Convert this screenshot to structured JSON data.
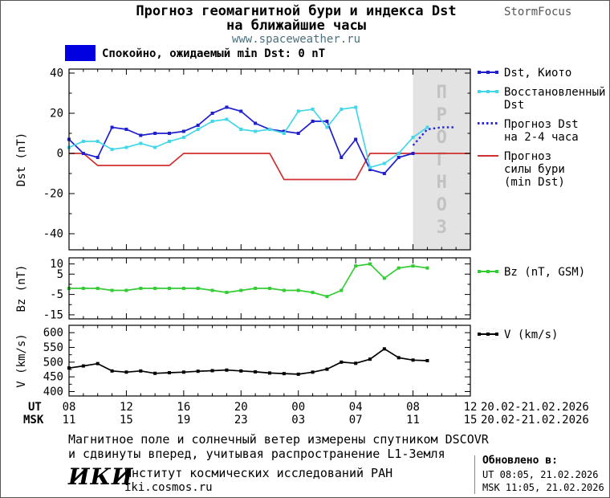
{
  "header": {
    "title_line1": "Прогноз геомагнитной бури и индекса Dst",
    "title_line2": "на ближайшие часы",
    "site_link": "www.spaceweather.ru",
    "brand": "StormFocus"
  },
  "banner": {
    "text": "Спокойно, ожидаемый min Dst: 0 nT"
  },
  "colors": {
    "kyoto": "#1f1fd0",
    "restored": "#44d7e8",
    "forecast": "#2828e0",
    "storm": "#d03030",
    "bz": "#33cc33",
    "v": "#000000",
    "quiet_banner": "#0000e0",
    "forecast_fill": "#e3e3e3",
    "forecast_letters": "#c2c2c2"
  },
  "legend": {
    "dst_kyoto": "Dst, Киото",
    "restored_1": "Восстановленный",
    "restored_2": "Dst",
    "forecast_1": "Прогноз Dst",
    "forecast_2": "на 2-4 часа",
    "storm_1": "Прогноз",
    "storm_2": "силы бури",
    "storm_3": "(min Dst)",
    "bz": "Bz (nT, GSM)",
    "v": "V (km/s)"
  },
  "chart_data": [
    {
      "id": "dst",
      "type": "line",
      "ylabel": "Dst (nT)",
      "ylim": [
        -48,
        42
      ],
      "yticks": [
        -40,
        -20,
        0,
        20,
        40
      ],
      "yticks_minor": [
        -30,
        -10,
        10,
        30
      ],
      "xlim": [
        0,
        28
      ],
      "xticks": [
        0,
        4,
        8,
        12,
        16,
        20,
        24,
        28
      ],
      "x_unit": "hours since 08:00 UT 20.02.2026",
      "forecast": {
        "start": 24,
        "end": 28,
        "label": "ПРОГНОЗ"
      },
      "series": [
        {
          "name": "Прогноз силы бури (min Dst)",
          "color": "#d03030",
          "x": [
            0,
            1,
            2,
            3,
            4,
            5,
            6,
            7,
            8,
            9,
            10,
            11,
            12,
            13,
            14,
            15,
            16,
            17,
            18,
            19,
            20,
            21,
            22,
            23,
            24,
            25,
            26,
            27,
            28
          ],
          "values": [
            0,
            0,
            -6,
            -6,
            -6,
            -6,
            -6,
            -6,
            0,
            0,
            0,
            0,
            0,
            0,
            0,
            -13,
            -13,
            -13,
            -13,
            -13,
            -13,
            0,
            0,
            0,
            0,
            0,
            0,
            0,
            0
          ]
        },
        {
          "name": "Dst, Киото",
          "color": "#1f1fd0",
          "marker": "square",
          "x": [
            0,
            1,
            2,
            3,
            4,
            5,
            6,
            7,
            8,
            9,
            10,
            11,
            12,
            13,
            14,
            15,
            16,
            17,
            18,
            19,
            20,
            21,
            22,
            23,
            24
          ],
          "values": [
            7,
            0,
            -2,
            13,
            12,
            9,
            10,
            10,
            11,
            14,
            20,
            23,
            21,
            15,
            12,
            11,
            10,
            16,
            16,
            -2,
            7,
            -8,
            -10,
            -2,
            0
          ]
        },
        {
          "name": "Восстановленный Dst",
          "color": "#44d7e8",
          "marker": "square",
          "x": [
            0,
            1,
            2,
            3,
            4,
            5,
            6,
            7,
            8,
            9,
            10,
            11,
            12,
            13,
            14,
            15,
            16,
            17,
            18,
            19,
            20,
            21,
            22,
            23,
            24,
            25
          ],
          "values": [
            3,
            6,
            6,
            2,
            3,
            5,
            3,
            6,
            8,
            12,
            16,
            17,
            12,
            11,
            12,
            10,
            21,
            22,
            13,
            22,
            23,
            -7,
            -5,
            0,
            8,
            13
          ]
        },
        {
          "name": "Прогноз Dst на 2-4 часа",
          "color": "#2828e0",
          "style": "dotted",
          "width": 2.4,
          "x": [
            24,
            25,
            26,
            27
          ],
          "values": [
            4,
            12,
            13,
            13
          ]
        }
      ]
    },
    {
      "id": "bz",
      "type": "line",
      "ylabel": "Bz (nT)",
      "ylim": [
        -17,
        13
      ],
      "yticks": [
        10,
        5,
        -5,
        -15
      ],
      "yticks_minor": [
        0,
        -10
      ],
      "xlim": [
        0,
        28
      ],
      "xticks": [
        0,
        4,
        8,
        12,
        16,
        20,
        24,
        28
      ],
      "series": [
        {
          "name": "Bz (nT, GSM)",
          "color": "#33cc33",
          "marker": "square",
          "x": [
            0,
            1,
            2,
            3,
            4,
            5,
            6,
            7,
            8,
            9,
            10,
            11,
            12,
            13,
            14,
            15,
            16,
            17,
            18,
            19,
            20,
            21,
            22,
            23,
            24,
            25
          ],
          "values": [
            -2,
            -2,
            -2,
            -3,
            -3,
            -2,
            -2,
            -2,
            -2,
            -2,
            -3,
            -4,
            -3,
            -2,
            -2,
            -3,
            -3,
            -4,
            -6,
            -3,
            9,
            10,
            3,
            8,
            9,
            8
          ]
        }
      ]
    },
    {
      "id": "v",
      "type": "line",
      "ylabel": "V (km/s)",
      "ylim": [
        385,
        625
      ],
      "yticks": [
        400,
        450,
        500,
        550,
        600
      ],
      "yticks_minor": [
        425,
        475,
        525,
        575
      ],
      "xlim": [
        0,
        28
      ],
      "xticks": [
        0,
        4,
        8,
        12,
        16,
        20,
        24,
        28
      ],
      "series": [
        {
          "name": "V (km/s)",
          "color": "#000000",
          "marker": "square",
          "x": [
            0,
            1,
            2,
            3,
            4,
            5,
            6,
            7,
            8,
            9,
            10,
            11,
            12,
            13,
            14,
            15,
            16,
            17,
            18,
            19,
            20,
            21,
            22,
            23,
            24,
            25
          ],
          "values": [
            480,
            487,
            495,
            470,
            466,
            470,
            462,
            464,
            466,
            469,
            471,
            473,
            470,
            467,
            463,
            461,
            459,
            466,
            476,
            500,
            496,
            510,
            545,
            515,
            507,
            505
          ]
        }
      ]
    }
  ],
  "xaxis": {
    "ut_label": "UT",
    "msk_label": "MSK",
    "tick_hours": [
      0,
      4,
      8,
      12,
      16,
      20,
      24,
      28
    ],
    "ut_ticks": [
      "08",
      "12",
      "16",
      "20",
      "00",
      "04",
      "08",
      "12"
    ],
    "msk_ticks": [
      "11",
      "15",
      "19",
      "23",
      "03",
      "07",
      "11",
      "15"
    ],
    "ut_date_range": "20.02-21.02.2026",
    "msk_date_range": "20.02-21.02.2026"
  },
  "footer": {
    "note_line1": "Магнитное поле и солнечный ветер измерены спутником DSCOVR",
    "note_line2": "и сдвинуты вперед, учитывая распространение L1-Земля",
    "logo": "ИКИ",
    "institute": "Институт космических исследований РАН",
    "site": "iki.cosmos.ru",
    "updated_label": "Обновлено в:",
    "updated_ut": "UT  08:05, 21.02.2026",
    "updated_msk": "MSK 11:05, 21.02.2026"
  }
}
